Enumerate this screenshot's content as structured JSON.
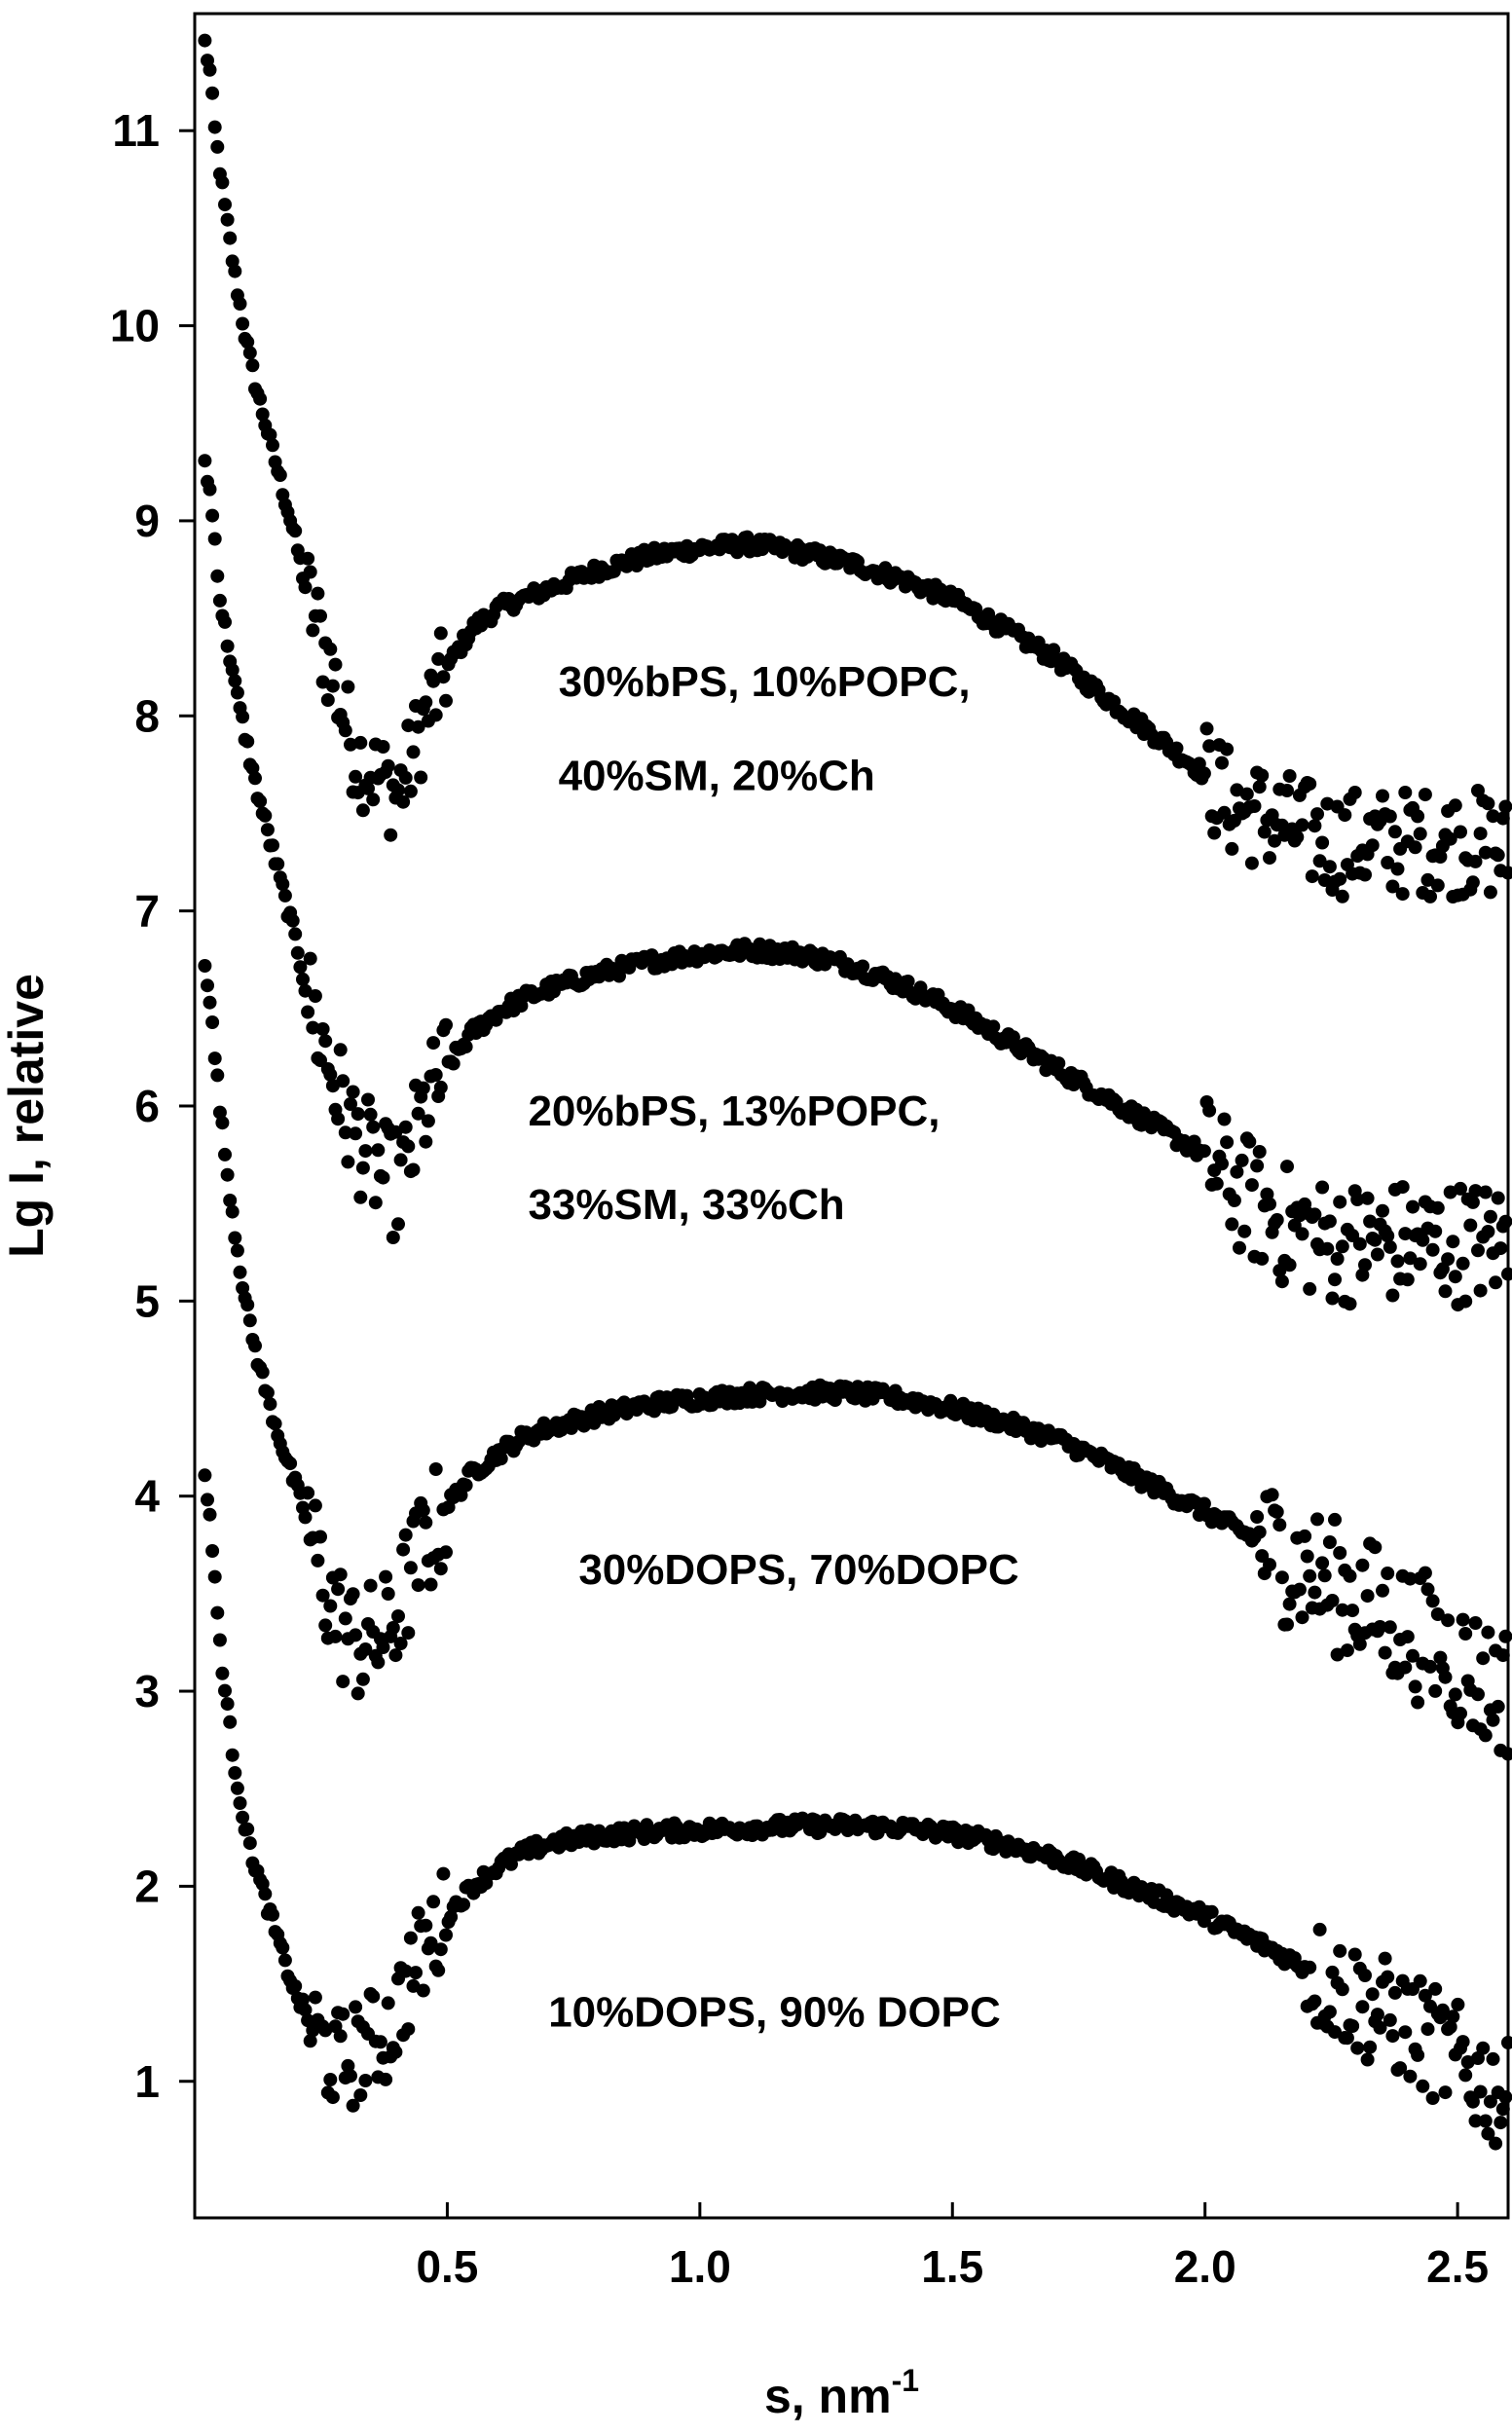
{
  "chart_data": {
    "type": "scatter",
    "title": "",
    "xlabel": {
      "main": "s, nm",
      "superscript": "-1"
    },
    "ylabel": "Lg I, relative",
    "xlim": [
      0.0,
      2.6
    ],
    "ylim": [
      0.3,
      11.6
    ],
    "x_ticks": [
      {
        "value": 0.5,
        "label": "0.5"
      },
      {
        "value": 1.0,
        "label": "1.0"
      },
      {
        "value": 1.5,
        "label": "1.5"
      },
      {
        "value": 2.0,
        "label": "2.0"
      },
      {
        "value": 2.5,
        "label": "2.5"
      }
    ],
    "y_ticks": [
      {
        "value": 1,
        "label": "1"
      },
      {
        "value": 2,
        "label": "2"
      },
      {
        "value": 3,
        "label": "3"
      },
      {
        "value": 4,
        "label": "4"
      },
      {
        "value": 5,
        "label": "5"
      },
      {
        "value": 6,
        "label": "6"
      },
      {
        "value": 7,
        "label": "7"
      },
      {
        "value": 8,
        "label": "8"
      },
      {
        "value": 9,
        "label": "9"
      },
      {
        "value": 10,
        "label": "10"
      },
      {
        "value": 11,
        "label": "11"
      }
    ],
    "grid": false,
    "legend": "none",
    "marker_color": "#000000",
    "series": [
      {
        "label_lines": [
          "30%bPS, 10%POPC,",
          "40%SM, 20%Ch"
        ],
        "label_position": {
          "x": 0.72,
          "y_lines": [
            8.1,
            7.62
          ]
        },
        "x": [
          0.02,
          0.03,
          0.04,
          0.05,
          0.06,
          0.08,
          0.1,
          0.12,
          0.15,
          0.18,
          0.2,
          0.22,
          0.25,
          0.28,
          0.3,
          0.32,
          0.35,
          0.38,
          0.4,
          0.42,
          0.45,
          0.5,
          0.55,
          0.6,
          0.65,
          0.7,
          0.8,
          0.9,
          1.0,
          1.1,
          1.2,
          1.3,
          1.4,
          1.5,
          1.6,
          1.7,
          1.8,
          1.9,
          2.0,
          2.05,
          2.1,
          2.15,
          2.2,
          2.25,
          2.3,
          2.35,
          2.4,
          2.45,
          2.5,
          2.55,
          2.6
        ],
        "y": [
          11.45,
          11.3,
          11.0,
          10.8,
          10.6,
          10.25,
          9.95,
          9.7,
          9.4,
          9.1,
          8.9,
          8.65,
          8.4,
          8.15,
          7.95,
          7.8,
          7.72,
          7.65,
          7.6,
          7.7,
          7.95,
          8.25,
          8.45,
          8.55,
          8.6,
          8.65,
          8.75,
          8.82,
          8.86,
          8.88,
          8.84,
          8.78,
          8.7,
          8.6,
          8.45,
          8.3,
          8.1,
          7.9,
          7.7,
          7.55,
          7.5,
          7.45,
          7.4,
          7.35,
          7.35,
          7.35,
          7.35,
          7.35,
          7.35,
          7.35,
          7.3
        ],
        "noise_start": 2.0,
        "noise": 0.28
      },
      {
        "label_lines": [
          "20%bPS, 13%POPC,",
          "33%SM, 33%Ch"
        ],
        "label_position": {
          "x": 0.66,
          "y_lines": [
            5.9,
            5.42
          ]
        },
        "x": [
          0.02,
          0.03,
          0.04,
          0.05,
          0.06,
          0.08,
          0.1,
          0.12,
          0.15,
          0.18,
          0.2,
          0.22,
          0.25,
          0.28,
          0.3,
          0.32,
          0.35,
          0.38,
          0.4,
          0.42,
          0.45,
          0.5,
          0.55,
          0.6,
          0.65,
          0.7,
          0.8,
          0.9,
          1.0,
          1.1,
          1.2,
          1.3,
          1.4,
          1.5,
          1.6,
          1.7,
          1.8,
          1.9,
          2.0,
          2.05,
          2.1,
          2.15,
          2.2,
          2.25,
          2.3,
          2.35,
          2.4,
          2.45,
          2.5,
          2.55,
          2.6
        ],
        "y": [
          9.3,
          9.15,
          8.9,
          8.6,
          8.45,
          8.15,
          7.9,
          7.65,
          7.35,
          7.05,
          6.85,
          6.6,
          6.35,
          6.1,
          5.95,
          5.85,
          5.72,
          5.62,
          5.6,
          5.68,
          5.95,
          6.2,
          6.38,
          6.48,
          6.55,
          6.6,
          6.68,
          6.74,
          6.78,
          6.8,
          6.78,
          6.72,
          6.62,
          6.5,
          6.35,
          6.2,
          6.05,
          5.9,
          5.75,
          5.6,
          5.5,
          5.4,
          5.35,
          5.3,
          5.3,
          5.3,
          5.3,
          5.3,
          5.3,
          5.3,
          5.3
        ],
        "noise_start": 2.0,
        "noise": 0.32
      },
      {
        "label_lines": [
          "30%DOPS, 70%DOPC"
        ],
        "label_position": {
          "x": 0.76,
          "y_lines": [
            3.55
          ]
        },
        "x": [
          0.02,
          0.03,
          0.04,
          0.05,
          0.06,
          0.08,
          0.1,
          0.12,
          0.15,
          0.18,
          0.2,
          0.22,
          0.25,
          0.28,
          0.3,
          0.32,
          0.35,
          0.38,
          0.4,
          0.42,
          0.45,
          0.5,
          0.55,
          0.6,
          0.65,
          0.7,
          0.8,
          0.9,
          1.0,
          1.1,
          1.2,
          1.3,
          1.4,
          1.5,
          1.6,
          1.7,
          1.8,
          1.9,
          2.0,
          2.05,
          2.1,
          2.15,
          2.2,
          2.25,
          2.3,
          2.35,
          2.4,
          2.45,
          2.5,
          2.55,
          2.6
        ],
        "y": [
          6.75,
          6.55,
          6.25,
          6.0,
          5.75,
          5.35,
          5.0,
          4.75,
          4.45,
          4.2,
          4.05,
          3.9,
          3.6,
          3.4,
          3.3,
          3.25,
          3.25,
          3.3,
          3.4,
          3.55,
          3.72,
          3.95,
          4.12,
          4.22,
          4.3,
          4.35,
          4.42,
          4.47,
          4.5,
          4.52,
          4.53,
          4.53,
          4.5,
          4.45,
          4.38,
          4.3,
          4.18,
          4.05,
          3.92,
          3.85,
          3.78,
          3.7,
          3.62,
          3.55,
          3.48,
          3.4,
          3.32,
          3.25,
          3.15,
          3.05,
          3.0
        ],
        "noise_start": 2.1,
        "noise": 0.35
      },
      {
        "label_lines": [
          "10%DOPS, 90% DOPC"
        ],
        "label_position": {
          "x": 0.7,
          "y_lines": [
            1.28
          ]
        },
        "x": [
          0.02,
          0.03,
          0.04,
          0.05,
          0.06,
          0.08,
          0.1,
          0.12,
          0.15,
          0.18,
          0.2,
          0.22,
          0.25,
          0.28,
          0.3,
          0.32,
          0.35,
          0.38,
          0.4,
          0.42,
          0.45,
          0.5,
          0.55,
          0.6,
          0.65,
          0.7,
          0.8,
          0.9,
          1.0,
          1.1,
          1.2,
          1.3,
          1.4,
          1.5,
          1.6,
          1.7,
          1.8,
          1.9,
          2.0,
          2.05,
          2.1,
          2.15,
          2.2,
          2.25,
          2.3,
          2.35,
          2.4,
          2.45,
          2.5,
          2.55,
          2.6
        ],
        "y": [
          4.1,
          3.9,
          3.55,
          3.25,
          3.0,
          2.6,
          2.3,
          2.1,
          1.85,
          1.6,
          1.45,
          1.35,
          1.2,
          1.1,
          1.1,
          1.15,
          1.2,
          1.25,
          1.35,
          1.5,
          1.65,
          1.85,
          2.0,
          2.1,
          2.17,
          2.22,
          2.26,
          2.28,
          2.29,
          2.3,
          2.31,
          2.31,
          2.3,
          2.27,
          2.22,
          2.15,
          2.05,
          1.95,
          1.85,
          1.78,
          1.72,
          1.65,
          1.58,
          1.5,
          1.42,
          1.35,
          1.28,
          1.2,
          1.1,
          1.0,
          0.9
        ],
        "noise_start": 2.2,
        "noise": 0.3
      }
    ]
  }
}
